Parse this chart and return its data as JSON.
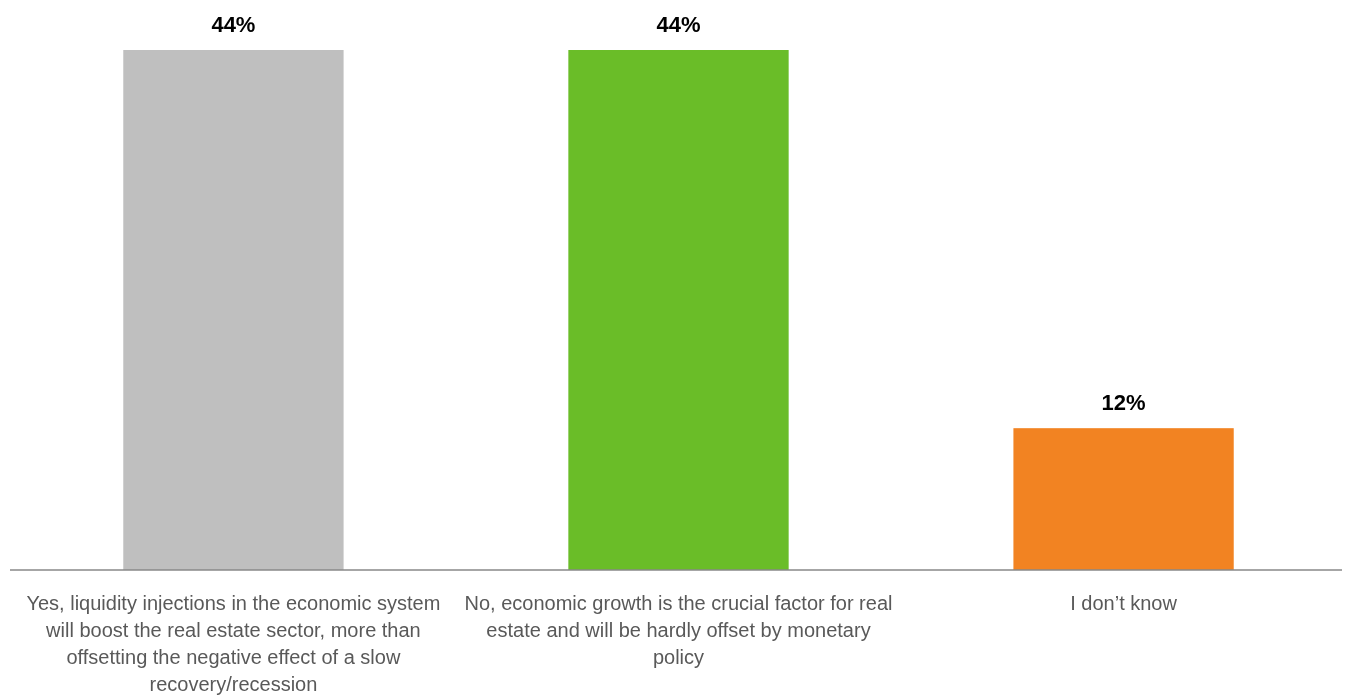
{
  "chart_data": {
    "type": "bar",
    "categories": [
      "Yes, liquidity injections in the economic system will boost the real estate sector, more than offsetting the negative effect of a slow recovery/recession",
      "No, economic growth is the crucial factor for real estate and will be hardly offset by monetary policy",
      "I don’t know"
    ],
    "values": [
      44,
      44,
      12
    ],
    "colors": [
      "#bfbfbf",
      "#6abd28",
      "#f28322"
    ],
    "value_labels": [
      "44%",
      "44%",
      "12%"
    ]
  }
}
